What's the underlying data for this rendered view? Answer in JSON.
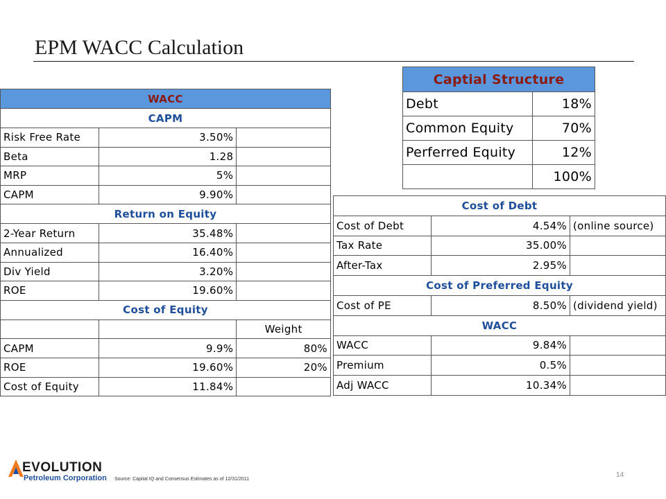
{
  "slide": {
    "title": "EPM WACC Calculation",
    "page_number": "14",
    "source": "Source: Capital IQ and Consensus Estimates as of 12/31/2011"
  },
  "logo": {
    "name": "EVOLUTION",
    "subtitle": "Petroleum Corporation"
  },
  "colors": {
    "header_fill": "#5b97dd",
    "header_text": "#8b1a0f",
    "section_text": "#1f4e9a",
    "accent_border": "#f07a1c"
  },
  "wacc_table": {
    "title": "WACC",
    "capm": {
      "heading": "CAPM",
      "rows": [
        {
          "label": "Risk Free Rate",
          "value": "3.50%"
        },
        {
          "label": "Beta",
          "value": "1.28"
        },
        {
          "label": "MRP",
          "value": "5%"
        },
        {
          "label": "CAPM",
          "value": "9.90%"
        }
      ]
    },
    "roe": {
      "heading": "Return on Equity",
      "rows": [
        {
          "label": "2-Year Return",
          "value": "35.48%"
        },
        {
          "label": "Annualized",
          "value": "16.40%"
        },
        {
          "label": "Div Yield",
          "value": "3.20%"
        },
        {
          "label": "ROE",
          "value": "19.60%"
        }
      ]
    },
    "cost_of_equity": {
      "heading": "Cost of Equity",
      "weight_header": "Weight",
      "rows": [
        {
          "label": "CAPM",
          "value": "9.9%",
          "weight": "80%"
        },
        {
          "label": "ROE",
          "value": "19.60%",
          "weight": "20%"
        },
        {
          "label": "Cost of Equity",
          "value": "11.84%",
          "weight": ""
        }
      ]
    }
  },
  "capital_structure": {
    "title": "Captial Structure",
    "rows": [
      {
        "label": "Debt",
        "value": "18%"
      },
      {
        "label": "Common Equity",
        "value": "70%"
      },
      {
        "label": "Perferred Equity",
        "value": "12%"
      },
      {
        "label": "",
        "value": "100%"
      }
    ]
  },
  "cost_table": {
    "cost_of_debt": {
      "heading": "Cost of Debt",
      "rows": [
        {
          "label": "Cost of Debt",
          "value": "4.54%",
          "note": "(online source)"
        },
        {
          "label": "Tax Rate",
          "value": "35.00%",
          "note": ""
        },
        {
          "label": "After-Tax",
          "value": "2.95%",
          "note": ""
        }
      ]
    },
    "cost_of_pe": {
      "heading": "Cost of Preferred Equity",
      "rows": [
        {
          "label": "Cost of PE",
          "value": "8.50%",
          "note": "(dividend yield)"
        }
      ]
    },
    "wacc": {
      "heading": "WACC",
      "rows": [
        {
          "label": "WACC",
          "value": "9.84%",
          "note": ""
        },
        {
          "label": "Premium",
          "value": "0.5%",
          "note": ""
        },
        {
          "label": "Adj WACC",
          "value": "10.34%",
          "note": ""
        }
      ]
    }
  }
}
